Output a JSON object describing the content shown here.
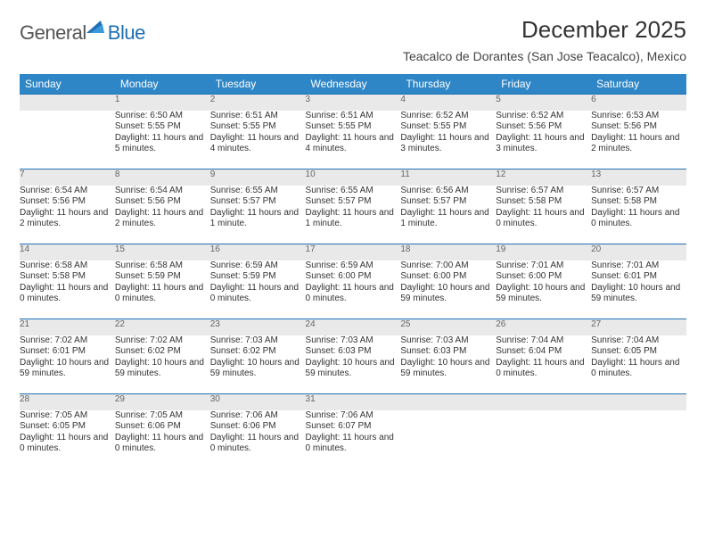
{
  "brand": {
    "part1": "General",
    "part2": "Blue"
  },
  "title": "December 2025",
  "location": "Teacalco de Dorantes (San Jose Teacalco), Mexico",
  "weekdays": [
    "Sunday",
    "Monday",
    "Tuesday",
    "Wednesday",
    "Thursday",
    "Friday",
    "Saturday"
  ],
  "colors": {
    "header_bg": "#2f86c6",
    "header_text": "#ffffff",
    "daynum_bg": "#e9e9e9",
    "rule": "#1f6fb2",
    "brand_gray": "#555555",
    "brand_blue": "#1f6fb2"
  },
  "weeks": [
    [
      null,
      {
        "n": "1",
        "sr": "Sunrise: 6:50 AM",
        "ss": "Sunset: 5:55 PM",
        "dl": "Daylight: 11 hours and 5 minutes."
      },
      {
        "n": "2",
        "sr": "Sunrise: 6:51 AM",
        "ss": "Sunset: 5:55 PM",
        "dl": "Daylight: 11 hours and 4 minutes."
      },
      {
        "n": "3",
        "sr": "Sunrise: 6:51 AM",
        "ss": "Sunset: 5:55 PM",
        "dl": "Daylight: 11 hours and 4 minutes."
      },
      {
        "n": "4",
        "sr": "Sunrise: 6:52 AM",
        "ss": "Sunset: 5:55 PM",
        "dl": "Daylight: 11 hours and 3 minutes."
      },
      {
        "n": "5",
        "sr": "Sunrise: 6:52 AM",
        "ss": "Sunset: 5:56 PM",
        "dl": "Daylight: 11 hours and 3 minutes."
      },
      {
        "n": "6",
        "sr": "Sunrise: 6:53 AM",
        "ss": "Sunset: 5:56 PM",
        "dl": "Daylight: 11 hours and 2 minutes."
      }
    ],
    [
      {
        "n": "7",
        "sr": "Sunrise: 6:54 AM",
        "ss": "Sunset: 5:56 PM",
        "dl": "Daylight: 11 hours and 2 minutes."
      },
      {
        "n": "8",
        "sr": "Sunrise: 6:54 AM",
        "ss": "Sunset: 5:56 PM",
        "dl": "Daylight: 11 hours and 2 minutes."
      },
      {
        "n": "9",
        "sr": "Sunrise: 6:55 AM",
        "ss": "Sunset: 5:57 PM",
        "dl": "Daylight: 11 hours and 1 minute."
      },
      {
        "n": "10",
        "sr": "Sunrise: 6:55 AM",
        "ss": "Sunset: 5:57 PM",
        "dl": "Daylight: 11 hours and 1 minute."
      },
      {
        "n": "11",
        "sr": "Sunrise: 6:56 AM",
        "ss": "Sunset: 5:57 PM",
        "dl": "Daylight: 11 hours and 1 minute."
      },
      {
        "n": "12",
        "sr": "Sunrise: 6:57 AM",
        "ss": "Sunset: 5:58 PM",
        "dl": "Daylight: 11 hours and 0 minutes."
      },
      {
        "n": "13",
        "sr": "Sunrise: 6:57 AM",
        "ss": "Sunset: 5:58 PM",
        "dl": "Daylight: 11 hours and 0 minutes."
      }
    ],
    [
      {
        "n": "14",
        "sr": "Sunrise: 6:58 AM",
        "ss": "Sunset: 5:58 PM",
        "dl": "Daylight: 11 hours and 0 minutes."
      },
      {
        "n": "15",
        "sr": "Sunrise: 6:58 AM",
        "ss": "Sunset: 5:59 PM",
        "dl": "Daylight: 11 hours and 0 minutes."
      },
      {
        "n": "16",
        "sr": "Sunrise: 6:59 AM",
        "ss": "Sunset: 5:59 PM",
        "dl": "Daylight: 11 hours and 0 minutes."
      },
      {
        "n": "17",
        "sr": "Sunrise: 6:59 AM",
        "ss": "Sunset: 6:00 PM",
        "dl": "Daylight: 11 hours and 0 minutes."
      },
      {
        "n": "18",
        "sr": "Sunrise: 7:00 AM",
        "ss": "Sunset: 6:00 PM",
        "dl": "Daylight: 10 hours and 59 minutes."
      },
      {
        "n": "19",
        "sr": "Sunrise: 7:01 AM",
        "ss": "Sunset: 6:00 PM",
        "dl": "Daylight: 10 hours and 59 minutes."
      },
      {
        "n": "20",
        "sr": "Sunrise: 7:01 AM",
        "ss": "Sunset: 6:01 PM",
        "dl": "Daylight: 10 hours and 59 minutes."
      }
    ],
    [
      {
        "n": "21",
        "sr": "Sunrise: 7:02 AM",
        "ss": "Sunset: 6:01 PM",
        "dl": "Daylight: 10 hours and 59 minutes."
      },
      {
        "n": "22",
        "sr": "Sunrise: 7:02 AM",
        "ss": "Sunset: 6:02 PM",
        "dl": "Daylight: 10 hours and 59 minutes."
      },
      {
        "n": "23",
        "sr": "Sunrise: 7:03 AM",
        "ss": "Sunset: 6:02 PM",
        "dl": "Daylight: 10 hours and 59 minutes."
      },
      {
        "n": "24",
        "sr": "Sunrise: 7:03 AM",
        "ss": "Sunset: 6:03 PM",
        "dl": "Daylight: 10 hours and 59 minutes."
      },
      {
        "n": "25",
        "sr": "Sunrise: 7:03 AM",
        "ss": "Sunset: 6:03 PM",
        "dl": "Daylight: 10 hours and 59 minutes."
      },
      {
        "n": "26",
        "sr": "Sunrise: 7:04 AM",
        "ss": "Sunset: 6:04 PM",
        "dl": "Daylight: 11 hours and 0 minutes."
      },
      {
        "n": "27",
        "sr": "Sunrise: 7:04 AM",
        "ss": "Sunset: 6:05 PM",
        "dl": "Daylight: 11 hours and 0 minutes."
      }
    ],
    [
      {
        "n": "28",
        "sr": "Sunrise: 7:05 AM",
        "ss": "Sunset: 6:05 PM",
        "dl": "Daylight: 11 hours and 0 minutes."
      },
      {
        "n": "29",
        "sr": "Sunrise: 7:05 AM",
        "ss": "Sunset: 6:06 PM",
        "dl": "Daylight: 11 hours and 0 minutes."
      },
      {
        "n": "30",
        "sr": "Sunrise: 7:06 AM",
        "ss": "Sunset: 6:06 PM",
        "dl": "Daylight: 11 hours and 0 minutes."
      },
      {
        "n": "31",
        "sr": "Sunrise: 7:06 AM",
        "ss": "Sunset: 6:07 PM",
        "dl": "Daylight: 11 hours and 0 minutes."
      },
      null,
      null,
      null
    ]
  ]
}
